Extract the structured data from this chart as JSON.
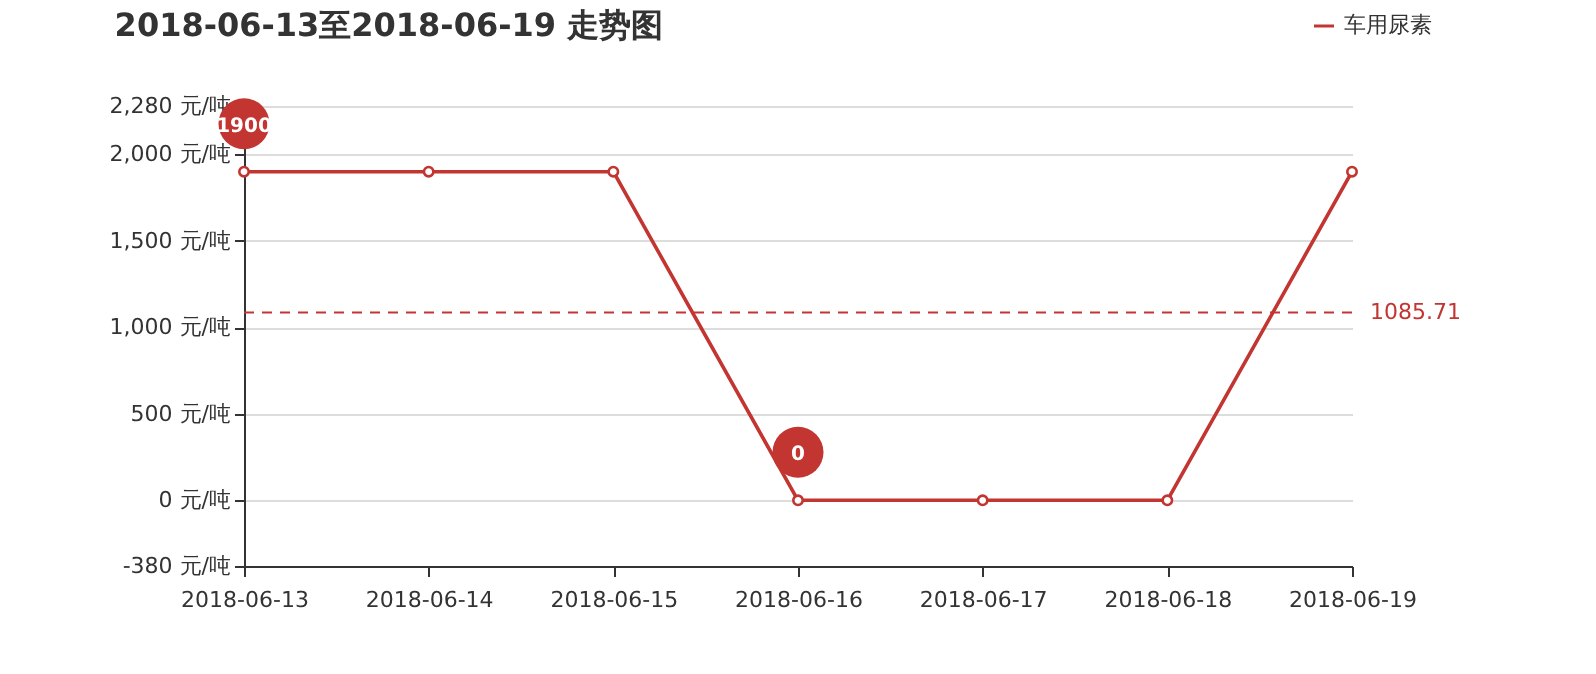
{
  "chart_data": {
    "type": "line",
    "title": "2018-06-13至2018-06-19 走势图",
    "categories": [
      "2018-06-13",
      "2018-06-14",
      "2018-06-15",
      "2018-06-16",
      "2018-06-17",
      "2018-06-18",
      "2018-06-19"
    ],
    "series": [
      {
        "name": "车用尿素",
        "color": "#c23531",
        "values": [
          1900,
          1900,
          1900,
          0,
          0,
          0,
          1900
        ]
      }
    ],
    "ylim": [
      -380,
      2280
    ],
    "yticks": [
      {
        "value": -380,
        "label": "-380 元/吨"
      },
      {
        "value": 0,
        "label": "0 元/吨"
      },
      {
        "value": 500,
        "label": "500 元/吨"
      },
      {
        "value": 1000,
        "label": "1,000 元/吨"
      },
      {
        "value": 1500,
        "label": "1,500 元/吨"
      },
      {
        "value": 2000,
        "label": "2,000 元/吨"
      },
      {
        "value": 2280,
        "label": "2,280 元/吨"
      }
    ],
    "ref_lines": [
      {
        "axis": "y",
        "value": 1085.71,
        "label": "1085.71",
        "color": "#c23531",
        "line_style": "dashed"
      }
    ],
    "annotations": [
      {
        "text": "1900",
        "x": "2018-06-13",
        "y": 1900
      },
      {
        "text": "0",
        "x": "2018-06-16",
        "y": 0
      }
    ],
    "grid": "y",
    "legend": "top right",
    "marker": "circle",
    "line_style": "solid"
  }
}
